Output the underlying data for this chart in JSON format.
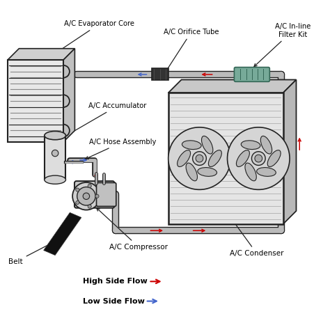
{
  "background_color": "#ffffff",
  "labels": {
    "evaporator_core": "A/C Evaporator Core",
    "orifice_tube": "A/C Orifice Tube",
    "inline_filter": "A/C In-line\nFilter Kit",
    "accumulator": "A/C Accumulator",
    "hose_assembly": "A/C Hose Assembly",
    "condenser": "A/C Condenser",
    "compressor": "A/C Compressor",
    "belt": "Belt",
    "high_side": "High Side Flow",
    "low_side": "Low Side Flow"
  },
  "colors": {
    "outline": "#222222",
    "high_flow": "#cc0000",
    "low_flow": "#4466cc",
    "filter_teal": "#77aa99",
    "filter_dark": "#336655",
    "belt_col": "#111111",
    "pipe_gray": "#bbbbbb",
    "evap_fill": "#e8e8e8",
    "cond_fill": "#e5e5e5",
    "acc_fill": "#dddddd",
    "comp_fill": "#cccccc",
    "fan_fill": "#c8c8c8",
    "fin_col": "#999999"
  },
  "figsize": [
    4.74,
    4.74
  ],
  "dpi": 100
}
